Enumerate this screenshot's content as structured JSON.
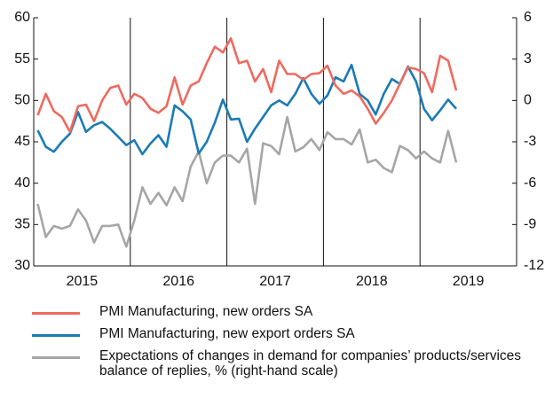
{
  "chart_data": {
    "type": "line",
    "categories": [
      null,
      null,
      null,
      null,
      null,
      null,
      "2015",
      null,
      null,
      null,
      null,
      null,
      null,
      null,
      null,
      null,
      null,
      null,
      "2016",
      null,
      null,
      null,
      null,
      null,
      null,
      null,
      null,
      null,
      null,
      null,
      "2017",
      null,
      null,
      null,
      null,
      null,
      null,
      null,
      null,
      null,
      null,
      null,
      "2018",
      null,
      null,
      null,
      null,
      null,
      null,
      null,
      null,
      null,
      null,
      null,
      "2019",
      null,
      null,
      null,
      null,
      null
    ],
    "ylim": [
      30,
      60
    ],
    "yticks": [
      30,
      35,
      40,
      45,
      50,
      55,
      60
    ],
    "y2lim": [
      -12,
      6
    ],
    "y2ticks": [
      -12,
      -9,
      -6,
      -3,
      0,
      3,
      6
    ],
    "series": [
      {
        "name": "PMI Manufacturing, new orders SA",
        "color": "#ef6a5f",
        "values": [
          48.2,
          50.8,
          48.7,
          48.0,
          46.2,
          49.3,
          49.5,
          47.5,
          50.0,
          51.5,
          51.8,
          49.5,
          50.8,
          50.3,
          49.0,
          48.5,
          49.3,
          52.8,
          49.5,
          51.8,
          52.3,
          54.5,
          56.5,
          55.8,
          57.5,
          54.5,
          54.8,
          52.3,
          53.8,
          51.0,
          54.8,
          53.2,
          53.2,
          52.5,
          53.2,
          53.3,
          54.2,
          51.8,
          50.8,
          51.2,
          50.5,
          49.0,
          47.2,
          48.5,
          50.0,
          52.0,
          54.0,
          53.8,
          53.3,
          51.0,
          55.4,
          54.8,
          51.2,
          null,
          null,
          null,
          null,
          null,
          null,
          null
        ]
      },
      {
        "name": "PMI Manufacturing, new export orders SA",
        "color": "#1b7bb4",
        "values": [
          46.4,
          44.4,
          43.8,
          45.0,
          46.0,
          48.6,
          46.2,
          47.0,
          47.4,
          46.6,
          45.6,
          44.6,
          45.2,
          43.5,
          44.8,
          45.8,
          44.4,
          49.4,
          48.7,
          47.7,
          43.6,
          45.0,
          47.3,
          50.1,
          47.7,
          47.8,
          45.0,
          46.6,
          48.0,
          49.4,
          50.0,
          49.4,
          50.8,
          52.7,
          50.8,
          49.6,
          50.6,
          52.8,
          52.3,
          54.3,
          50.8,
          50.0,
          48.3,
          50.8,
          52.6,
          52.0,
          54.1,
          52.3,
          49.0,
          47.6,
          48.8,
          50.1,
          49.0,
          null,
          null,
          null,
          null,
          null,
          null,
          null
        ]
      },
      {
        "name": "Expectations of changes in demand for companies’ products/services\nbalance of replies, % (right-hand scale)",
        "color": "#a6a6a6",
        "axis": "y2",
        "values": [
          -7.5,
          -9.9,
          -9.1,
          -9.3,
          -9.1,
          -7.9,
          -8.7,
          -10.3,
          -9.1,
          -9.1,
          -9.0,
          -10.6,
          -8.7,
          -6.3,
          -7.5,
          -6.7,
          -7.6,
          -6.3,
          -7.3,
          -4.8,
          -3.7,
          -6.0,
          -4.5,
          -4.0,
          -4.0,
          -4.5,
          -3.5,
          -7.5,
          -3.1,
          -3.3,
          -3.9,
          -1.2,
          -3.7,
          -3.4,
          -2.8,
          -3.6,
          -2.3,
          -2.8,
          -2.8,
          -3.2,
          -2.1,
          -4.5,
          -4.3,
          -4.9,
          -5.2,
          -3.3,
          -3.6,
          -4.2,
          -3.7,
          -4.2,
          -4.5,
          -2.2,
          -4.5,
          null,
          null,
          null,
          null,
          null,
          null,
          null
        ]
      }
    ]
  }
}
